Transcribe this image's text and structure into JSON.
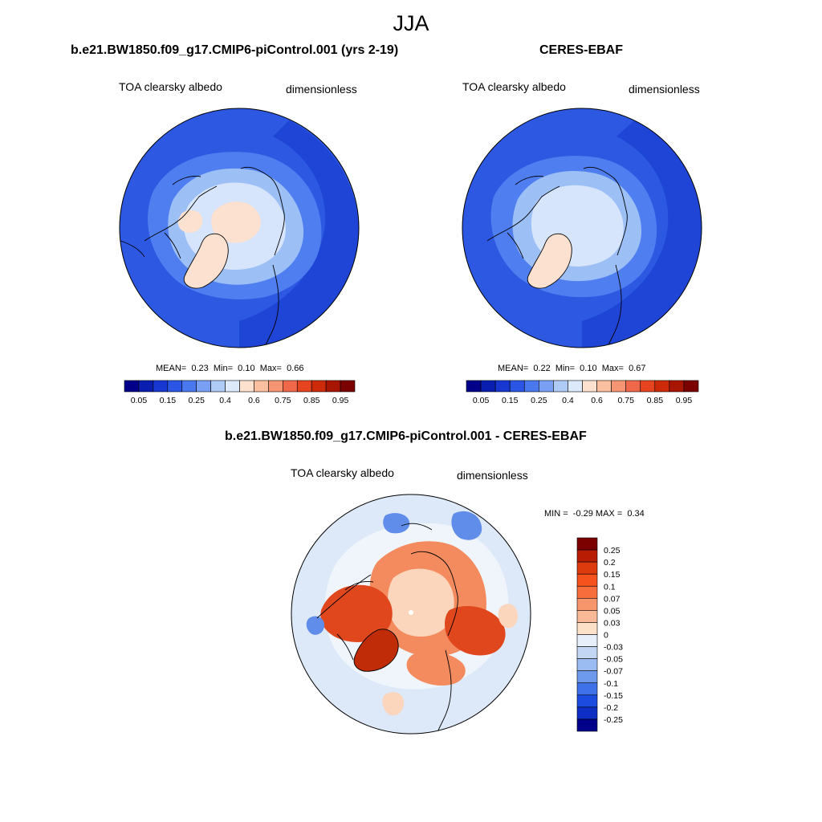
{
  "figure": {
    "season": "JJA"
  },
  "panels": {
    "model": {
      "title": "b.e21.BW1850.f09_g17.CMIP6-piControl.001 (yrs 2-19)",
      "variable": "TOA clearsky albedo",
      "units": "dimensionless",
      "stats": {
        "mean_label": "MEAN=",
        "mean": "0.23",
        "min_label": "Min=",
        "min": "0.10",
        "max_label": "Max=",
        "max": "0.66"
      }
    },
    "obs": {
      "title": "CERES-EBAF",
      "variable": "TOA clearsky albedo",
      "units": "dimensionless",
      "stats": {
        "mean_label": "MEAN=",
        "mean": "0.22",
        "min_label": "Min=",
        "min": "0.10",
        "max_label": "Max=",
        "max": "0.67"
      }
    },
    "diff": {
      "title": "b.e21.BW1850.f09_g17.CMIP6-piControl.001 - CERES-EBAF",
      "variable": "TOA clearsky albedo",
      "units": "dimensionless",
      "stats": {
        "min_label": "MIN =",
        "min": "-0.29",
        "max_label": "MAX =",
        "max": "0.34"
      }
    }
  },
  "colorbars": {
    "field": {
      "colors": [
        "#00008b",
        "#0a1fb0",
        "#1737d0",
        "#2a55e5",
        "#4a78ef",
        "#7aa0f5",
        "#aecbf6",
        "#ddeafb",
        "#fde2cf",
        "#fbc0a0",
        "#f69473",
        "#f0684a",
        "#e6431f",
        "#cc2a08",
        "#a81603",
        "#7b0000"
      ],
      "labels": [
        "0.05",
        "0.15",
        "0.25",
        "0.4",
        "0.6",
        "0.75",
        "0.85",
        "0.95"
      ]
    },
    "diff": {
      "colors": [
        "#7b0000",
        "#b81c03",
        "#dd3a0e",
        "#f5521e",
        "#f76e3c",
        "#f7966a",
        "#f9b996",
        "#fde0c8",
        "#e6effa",
        "#c3d7f5",
        "#9bbcf2",
        "#6e9aee",
        "#3f72ea",
        "#1c4be0",
        "#0d2fc4",
        "#00008b"
      ],
      "labels": [
        "0.25",
        "0.2",
        "0.15",
        "0.1",
        "0.07",
        "0.05",
        "0.03",
        "0",
        "-0.03",
        "-0.05",
        "-0.07",
        "-0.1",
        "-0.15",
        "-0.2",
        "-0.25"
      ]
    }
  },
  "map_colors": {
    "ocean_model": "#2d58e2",
    "ocean_dark": "#1f45d6",
    "mid_blue": "#4f7ef0",
    "light_blue": "#9cbff6",
    "pale_blue": "#d6e5fb",
    "peach": "#fde1d0",
    "diff_base": "#dde9f8",
    "diff_pale": "#f0f5fc",
    "diff_orange": "#f38b5e",
    "diff_red": "#e0471c",
    "diff_dark": "#c02c08",
    "diff_peach": "#fbd5bc",
    "diff_blue": "#5f8de9"
  }
}
